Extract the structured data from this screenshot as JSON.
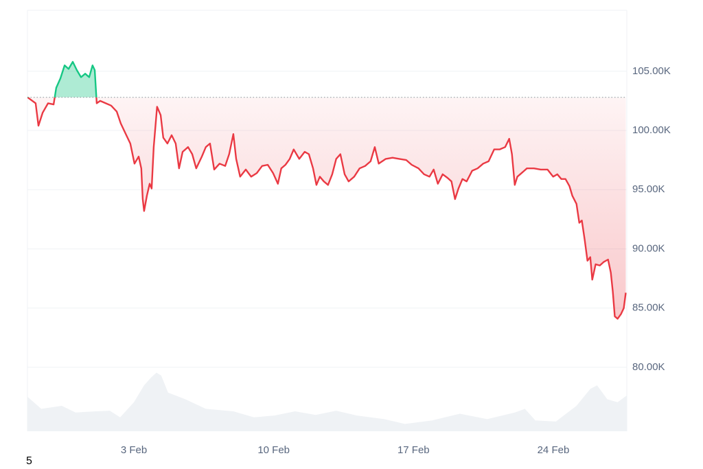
{
  "chart_data": {
    "type": "line",
    "x": [
      28.67,
      29.08,
      29.22,
      29.43,
      29.7,
      29.98,
      30.11,
      30.32,
      30.53,
      30.73,
      30.94,
      31.14,
      31.35,
      31.56,
      31.76,
      31.93,
      32.04,
      32.14,
      32.31,
      32.59,
      32.86,
      33.14,
      33.34,
      33.62,
      33.82,
      34.03,
      34.24,
      34.37,
      34.44,
      34.51,
      34.65,
      34.79,
      34.89,
      34.99,
      35.16,
      35.34,
      35.47,
      35.68,
      35.89,
      36.09,
      36.26,
      36.44,
      36.71,
      36.92,
      37.12,
      37.4,
      37.6,
      37.81,
      38.02,
      38.29,
      38.57,
      38.77,
      38.98,
      39.12,
      39.32,
      39.6,
      39.87,
      40.15,
      40.42,
      40.7,
      40.97,
      41.21,
      41.38,
      41.59,
      41.8,
      42.0,
      42.28,
      42.55,
      42.76,
      42.97,
      43.14,
      43.31,
      43.51,
      43.72,
      43.93,
      44.13,
      44.34,
      44.55,
      44.75,
      45.03,
      45.3,
      45.58,
      45.85,
      46.06,
      46.26,
      46.61,
      46.95,
      47.29,
      47.64,
      47.91,
      48.25,
      48.53,
      48.8,
      49.01,
      49.22,
      49.46,
      49.7,
      49.9,
      50.08,
      50.25,
      50.45,
      50.66,
      50.94,
      51.21,
      51.49,
      51.76,
      52.04,
      52.31,
      52.59,
      52.79,
      52.93,
      53.07,
      53.2,
      53.41,
      53.68,
      54.03,
      54.37,
      54.71,
      54.99,
      55.2,
      55.4,
      55.61,
      55.81,
      55.95,
      56.16,
      56.3,
      56.43,
      56.57,
      56.71,
      56.85,
      56.95,
      57.12,
      57.33,
      57.53,
      57.74,
      57.88,
      57.98,
      58.08,
      58.22,
      58.39,
      58.53,
      58.63
    ],
    "series": [
      {
        "color": "#ea3943",
        "color_up": "#16c784",
        "values": [
          102800,
          102300,
          100400,
          101500,
          102300,
          102200,
          103600,
          104400,
          105500,
          105200,
          105800,
          105100,
          104500,
          104800,
          104500,
          105500,
          105100,
          102300,
          102500,
          102300,
          102100,
          101600,
          100600,
          99600,
          98900,
          97200,
          97800,
          96800,
          94200,
          93200,
          94500,
          95500,
          95100,
          98600,
          102000,
          101300,
          99400,
          98900,
          99600,
          98900,
          96800,
          98200,
          98600,
          98000,
          96800,
          97800,
          98600,
          98900,
          96700,
          97200,
          97000,
          98000,
          99700,
          97600,
          96100,
          96700,
          96100,
          96400,
          97000,
          97100,
          96400,
          95500,
          96800,
          97100,
          97600,
          98400,
          97600,
          98200,
          98000,
          96800,
          95400,
          96100,
          95700,
          95400,
          96300,
          97600,
          98000,
          96300,
          95700,
          96100,
          96800,
          97000,
          97400,
          98600,
          97200,
          97600,
          97700,
          97600,
          97500,
          97100,
          96800,
          96300,
          96100,
          96700,
          95500,
          96300,
          96000,
          95700,
          94200,
          95100,
          95900,
          95700,
          96600,
          96800,
          97200,
          97400,
          98400,
          98400,
          98600,
          99300,
          98000,
          95400,
          96100,
          96400,
          96800,
          96800,
          96700,
          96700,
          96100,
          96300,
          95900,
          95900,
          95300,
          94500,
          93800,
          92200,
          92400,
          90800,
          89000,
          89300,
          87400,
          88700,
          88600,
          88900,
          89100,
          88000,
          86400,
          84300,
          84100,
          84500,
          85000,
          86300
        ]
      }
    ],
    "baseline": 102800,
    "volume": {
      "color": "#eff2f5",
      "x": [
        28.67,
        29.36,
        30.39,
        31.08,
        32.11,
        32.79,
        33.31,
        34.0,
        34.51,
        34.86,
        35.13,
        35.37,
        35.71,
        36.57,
        37.6,
        38.98,
        40.01,
        41.04,
        42.07,
        43.1,
        44.13,
        45.16,
        46.54,
        47.57,
        48.94,
        50.32,
        51.69,
        53.07,
        53.58,
        54.1,
        55.13,
        56.16,
        56.85,
        57.19,
        57.7,
        58.22,
        58.67
      ],
      "values": [
        57,
        37,
        42,
        31,
        33,
        34,
        23,
        48,
        76,
        89,
        97,
        92,
        64,
        53,
        37,
        33,
        23,
        26,
        33,
        27,
        34,
        26,
        20,
        12,
        18,
        29,
        20,
        31,
        37,
        18,
        16,
        42,
        70,
        76,
        53,
        48,
        59
      ],
      "ylim": [
        0,
        100
      ]
    },
    "xlim": [
      28.67,
      58.68
    ],
    "xticks": [
      {
        "value": 34,
        "label": "3 Feb"
      },
      {
        "value": 41,
        "label": "10 Feb"
      },
      {
        "value": 48,
        "label": "17 Feb"
      },
      {
        "value": 55,
        "label": "24 Feb"
      }
    ],
    "ylim": [
      74600,
      110150
    ],
    "yticks": [
      {
        "value": 80000,
        "label": "80.00K"
      },
      {
        "value": 85000,
        "label": "85.00K"
      },
      {
        "value": 90000,
        "label": "90.00K"
      },
      {
        "value": 95000,
        "label": "95.00K"
      },
      {
        "value": 100000,
        "label": "100.00K"
      },
      {
        "value": 105000,
        "label": "105.00K"
      }
    ],
    "grid": true,
    "footer_text": "5"
  }
}
